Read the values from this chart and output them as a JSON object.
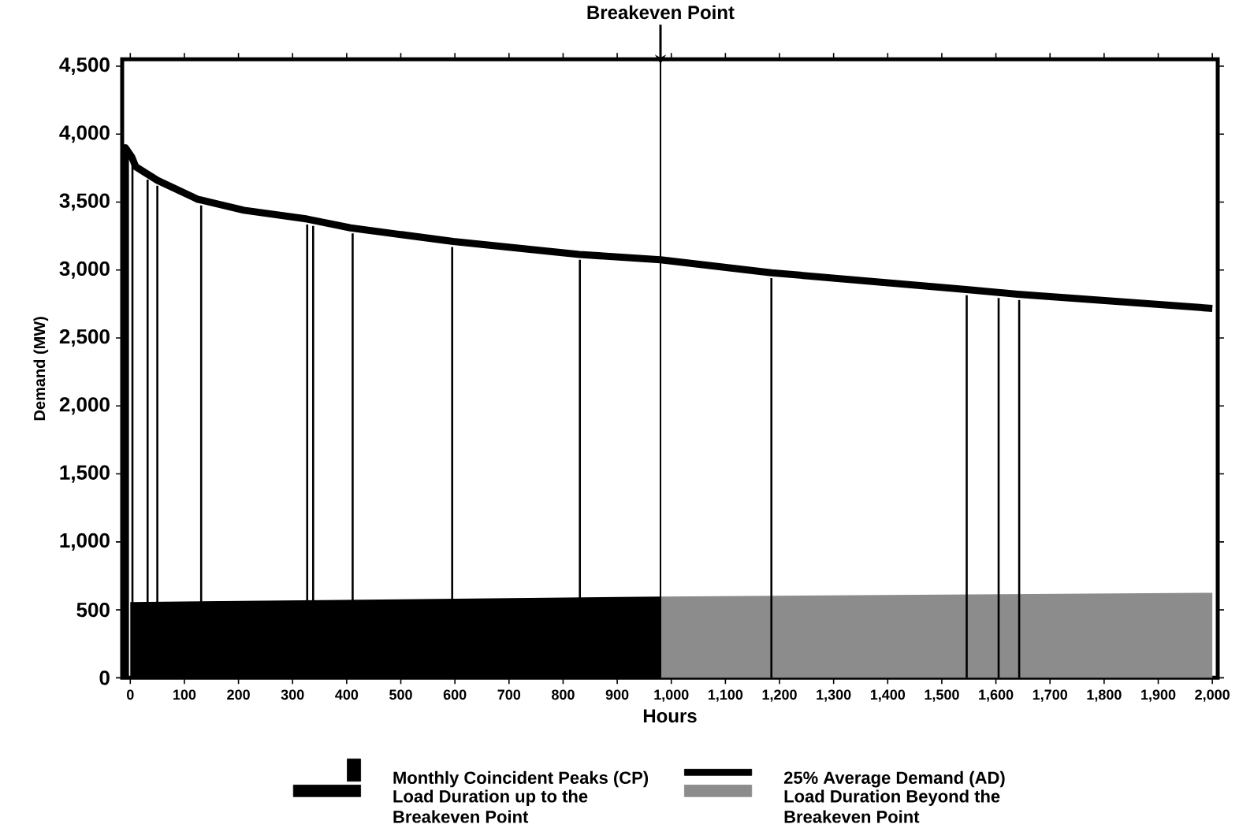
{
  "chart_data": {
    "type": "line",
    "xlabel": "Hours",
    "ylabel": "Demand (MW)",
    "xlim": [
      -15,
      2010
    ],
    "ylim": [
      0,
      4550
    ],
    "xticks": [
      0,
      100,
      200,
      300,
      400,
      500,
      600,
      700,
      800,
      900,
      {
        "value": 1000,
        "label": "1,000"
      },
      {
        "value": 1100,
        "label": "1,100"
      },
      {
        "value": 1200,
        "label": "1,200"
      },
      {
        "value": 1300,
        "label": "1,300"
      },
      {
        "value": 1400,
        "label": "1,400"
      },
      {
        "value": 1500,
        "label": "1,500"
      },
      {
        "value": 1600,
        "label": "1,600"
      },
      {
        "value": 1700,
        "label": "1,700"
      },
      {
        "value": 1800,
        "label": "1,800"
      },
      {
        "value": 1900,
        "label": "1,900"
      },
      {
        "value": 2000,
        "label": "2,000"
      }
    ],
    "yticks": [
      0,
      500,
      {
        "value": 1000,
        "label": "1,000"
      },
      {
        "value": 1500,
        "label": "1,500"
      },
      {
        "value": 2000,
        "label": "2,000"
      },
      {
        "value": 2500,
        "label": "2,500"
      },
      {
        "value": 3000,
        "label": "3,000"
      },
      {
        "value": 3500,
        "label": "3,500"
      },
      {
        "value": 4000,
        "label": "4,000"
      },
      {
        "value": 4500,
        "label": "4,500"
      }
    ],
    "legend": "bottom",
    "ref_lines": [
      {
        "axis": "x",
        "value": 980,
        "label": "Breakeven Point"
      }
    ],
    "series": [
      {
        "name": "Monthly Coincident Peaks (CP)",
        "type": "bar",
        "color": "#000000",
        "x": [
          4,
          32,
          50,
          131,
          327,
          338,
          411,
          595,
          831,
          1185,
          1546,
          1605,
          1643
        ],
        "values": [
          3780,
          3665,
          3620,
          3475,
          3335,
          3325,
          3270,
          3170,
          3075,
          2940,
          2815,
          2795,
          2780
        ]
      },
      {
        "name": "25% Average Demand (AD)",
        "color": "#000000",
        "x": [
          -9,
          -9,
          3,
          10,
          50,
          125,
          210,
          327,
          407,
          597,
          830,
          980,
          1185,
          1545,
          1640,
          2000
        ],
        "values": [
          0,
          3900,
          3830,
          3760,
          3660,
          3520,
          3440,
          3375,
          3310,
          3210,
          3115,
          3075,
          2980,
          2857,
          2822,
          2718
        ]
      },
      {
        "name": "Load Duration up to the Breakeven Point",
        "type": "area",
        "color": "#000000",
        "x": [
          0,
          980
        ],
        "values": [
          557,
          598
        ]
      },
      {
        "name": "Load Duration Beyond the Breakeven Point",
        "type": "area",
        "color": "#8c8c8c",
        "x": [
          980,
          2000
        ],
        "values": [
          598,
          625
        ]
      }
    ]
  }
}
